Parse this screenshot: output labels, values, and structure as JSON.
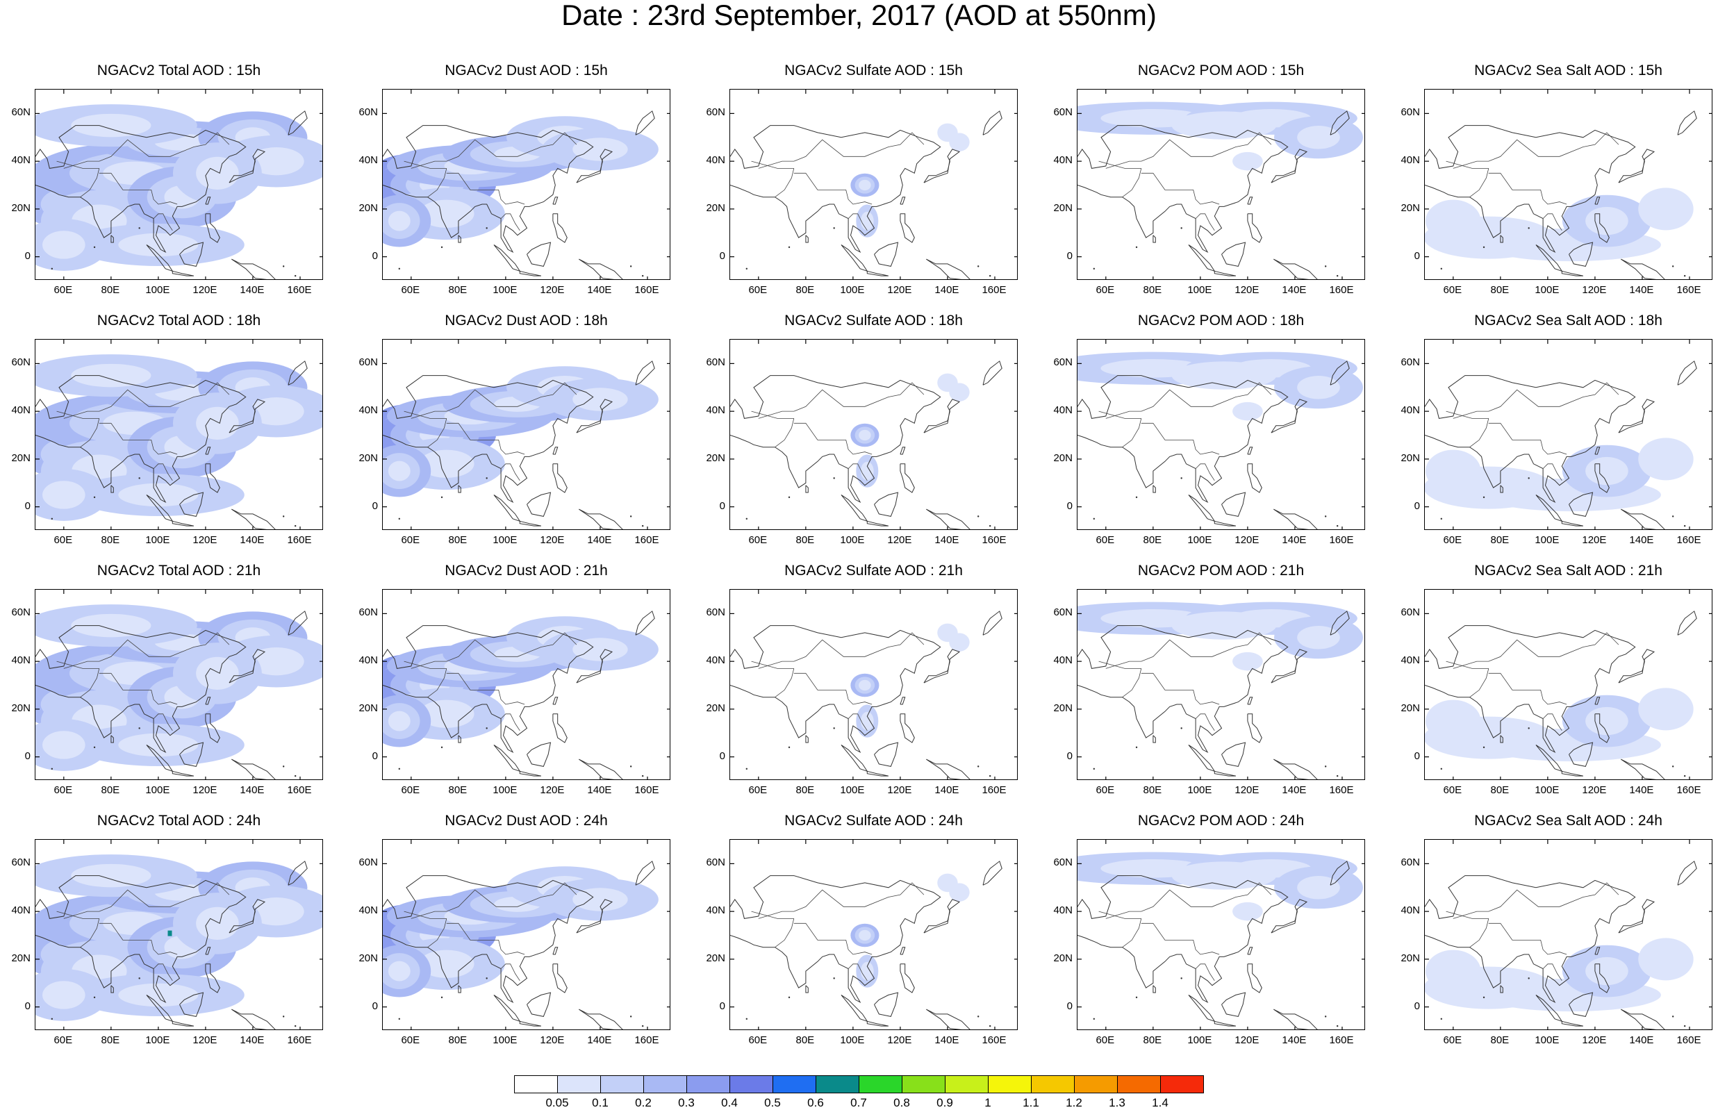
{
  "title": "Date : 23rd September, 2017 (AOD at 550nm)",
  "axes": {
    "x_ticks": [
      "60E",
      "80E",
      "100E",
      "120E",
      "140E",
      "160E"
    ],
    "x_tick_values": [
      60,
      80,
      100,
      120,
      140,
      160
    ],
    "y_ticks": [
      "60N",
      "40N",
      "20N",
      "0"
    ],
    "y_tick_values": [
      60,
      40,
      20,
      0
    ],
    "lon_range": [
      48,
      170
    ],
    "lat_range": [
      -10,
      70
    ]
  },
  "rows": [
    {
      "hour": "15h",
      "titles": [
        "NGACv2 Total AOD : 15h",
        "NGACv2 Dust AOD : 15h",
        "NGACv2 Sulfate AOD : 15h",
        "NGACv2 POM AOD : 15h",
        "NGACv2 Sea Salt AOD : 15h"
      ]
    },
    {
      "hour": "18h",
      "titles": [
        "NGACv2 Total AOD : 18h",
        "NGACv2 Dust AOD : 18h",
        "NGACv2 Sulfate AOD : 18h",
        "NGACv2 POM AOD : 18h",
        "NGACv2 Sea Salt AOD : 18h"
      ]
    },
    {
      "hour": "21h",
      "titles": [
        "NGACv2 Total AOD : 21h",
        "NGACv2 Dust AOD : 21h",
        "NGACv2 Sulfate AOD : 21h",
        "NGACv2 POM AOD : 21h",
        "NGACv2 Sea Salt AOD : 21h"
      ]
    },
    {
      "hour": "24h",
      "titles": [
        "NGACv2 Total AOD : 24h",
        "NGACv2 Dust AOD : 24h",
        "NGACv2 Sulfate AOD : 24h",
        "NGACv2 POM AOD : 24h",
        "NGACv2 Sea Salt  AOD : 24h"
      ]
    }
  ],
  "colorbar": {
    "labels": [
      "0.05",
      "0.1",
      "0.2",
      "0.3",
      "0.4",
      "0.5",
      "0.6",
      "0.7",
      "0.8",
      "0.9",
      "1",
      "1.1",
      "1.2",
      "1.3",
      "1.4"
    ],
    "colors": [
      "#ffffff",
      "#dce4fb",
      "#c3d0f8",
      "#a9b9f4",
      "#8b9cef",
      "#6b7be8",
      "#1f6ef2",
      "#0a8a8a",
      "#2ad62a",
      "#88e01a",
      "#c8f01a",
      "#f5f50a",
      "#f5c800",
      "#f59b00",
      "#f56a00",
      "#f52a0a"
    ]
  }
}
